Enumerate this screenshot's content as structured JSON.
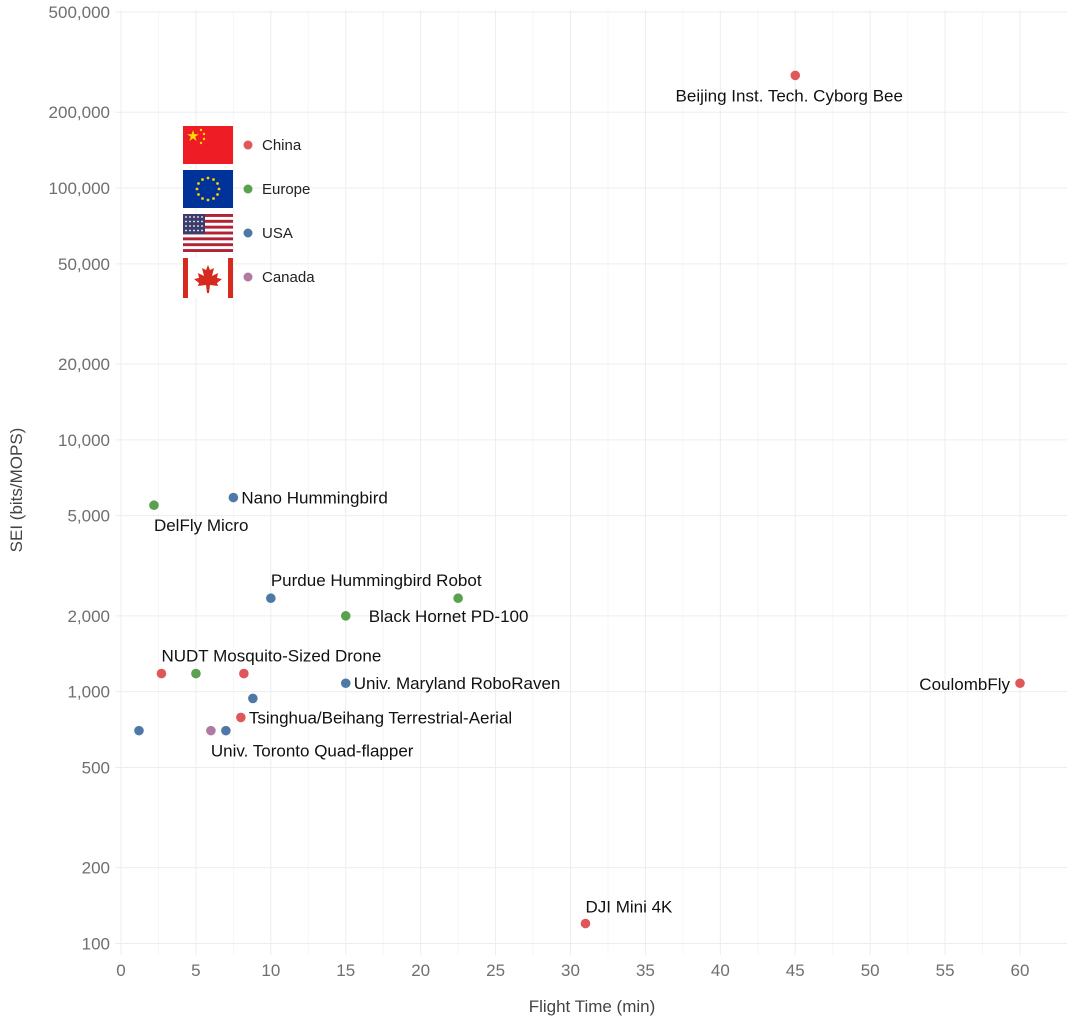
{
  "chart_data": {
    "type": "scatter",
    "xlabel": "Flight Time (min)",
    "ylabel": "SEI (bits/MOPS)",
    "x_scale": "linear",
    "y_scale": "log",
    "xlim": [
      -1,
      63
    ],
    "ylim": [
      90,
      500000
    ],
    "x_ticks": [
      0,
      5,
      10,
      15,
      20,
      25,
      30,
      35,
      40,
      45,
      50,
      55,
      60
    ],
    "y_ticks": [
      100,
      200,
      500,
      1000,
      2000,
      5000,
      10000,
      20000,
      50000,
      100000,
      200000,
      500000
    ],
    "y_tick_labels": [
      "100",
      "200",
      "500",
      "1,000",
      "2,000",
      "5,000",
      "10,000",
      "20,000",
      "50,000",
      "100,000",
      "200,000",
      "500,000"
    ],
    "grid": true,
    "legend_position": "top-left",
    "colors": {
      "China": "#e05759",
      "Europe": "#59a14f",
      "USA": "#4e79a7",
      "Canada": "#b07aa1"
    },
    "legend": [
      {
        "name": "China",
        "flag": "china-flag"
      },
      {
        "name": "Europe",
        "flag": "eu-flag"
      },
      {
        "name": "USA",
        "flag": "usa-flag"
      },
      {
        "name": "Canada",
        "flag": "canada-flag"
      }
    ],
    "points": [
      {
        "x": 45,
        "y": 280000,
        "region": "China",
        "label": "Beijing Inst. Tech. Cyborg Bee"
      },
      {
        "x": 2.2,
        "y": 5500,
        "region": "Europe",
        "label": "DelFly Micro"
      },
      {
        "x": 7.5,
        "y": 5900,
        "region": "USA",
        "label": "Nano Hummingbird"
      },
      {
        "x": 10,
        "y": 2350,
        "region": "USA",
        "label": "Purdue Hummingbird Robot"
      },
      {
        "x": 22.5,
        "y": 2350,
        "region": "Europe",
        "label": ""
      },
      {
        "x": 15,
        "y": 2000,
        "region": "Europe",
        "label": "Black Hornet PD-100"
      },
      {
        "x": 2.7,
        "y": 1180,
        "region": "China",
        "label": "NUDT Mosquito-Sized Drone"
      },
      {
        "x": 5,
        "y": 1180,
        "region": "Europe",
        "label": ""
      },
      {
        "x": 8.2,
        "y": 1180,
        "region": "China",
        "label": ""
      },
      {
        "x": 15,
        "y": 1080,
        "region": "USA",
        "label": "Univ. Maryland RoboRaven"
      },
      {
        "x": 60,
        "y": 1080,
        "region": "China",
        "label": "CoulombFly"
      },
      {
        "x": 8.8,
        "y": 940,
        "region": "USA",
        "label": ""
      },
      {
        "x": 8,
        "y": 790,
        "region": "China",
        "label": "Tsinghua/Beihang Terrestrial-Aerial"
      },
      {
        "x": 1.2,
        "y": 700,
        "region": "USA",
        "label": ""
      },
      {
        "x": 6,
        "y": 700,
        "region": "Canada",
        "label": "Univ. Toronto Quad-flapper"
      },
      {
        "x": 7,
        "y": 700,
        "region": "USA",
        "label": ""
      },
      {
        "x": 31,
        "y": 120,
        "region": "China",
        "label": "DJI Mini 4K"
      }
    ]
  }
}
